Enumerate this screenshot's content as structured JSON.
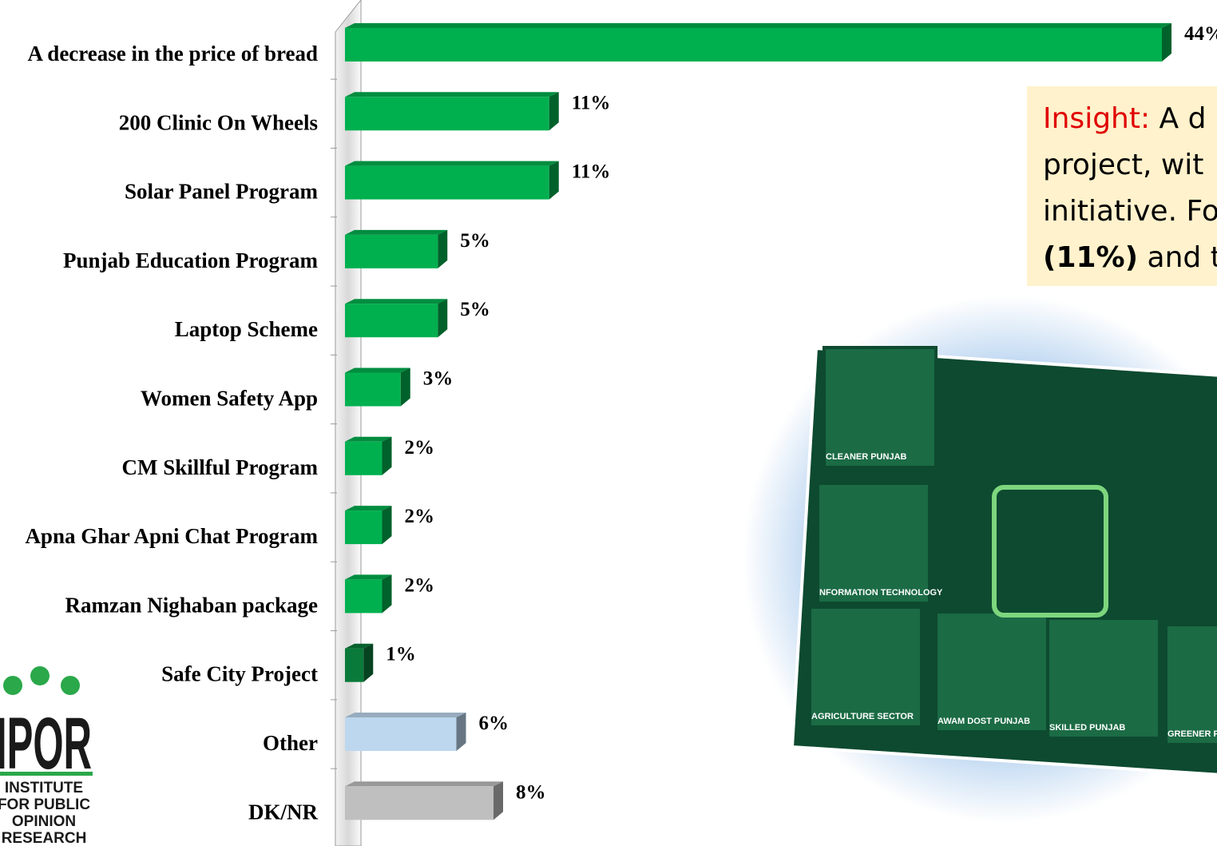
{
  "chart_data": {
    "type": "bar",
    "categories": [
      "A decrease in the price of bread",
      "200 Clinic On Wheels",
      "Solar Panel Program",
      "Punjab Education Program",
      "Laptop Scheme",
      "Women Safety App",
      "CM Skillful Program",
      "Apna Ghar Apni Chat Program",
      "Ramzan Nighaban package",
      "Safe City Project",
      "Other",
      "DK/NR"
    ],
    "values": [
      44,
      11,
      11,
      5,
      5,
      3,
      2,
      2,
      2,
      1,
      6,
      8
    ],
    "value_labels": [
      "44%",
      "11%",
      "11%",
      "5%",
      "5%",
      "3%",
      "2%",
      "2%",
      "2%",
      "1%",
      "6%",
      "8%"
    ],
    "colors": [
      "#00b04f",
      "#00b04f",
      "#00b04f",
      "#00b04f",
      "#00b04f",
      "#00b04f",
      "#00b04f",
      "#00b04f",
      "#00b04f",
      "#0a7a3a",
      "#bdd7ee",
      "#bfbfbf"
    ]
  },
  "insight": {
    "label": "Insight:",
    "lines": [
      " A d",
      "project, wit",
      "initiative. Fo",
      "(11%)",
      " and t"
    ]
  },
  "logo": {
    "mark": "IPOR",
    "lines": [
      "INSTITUTE",
      "FOR PUBLIC",
      "OPINION",
      "RESEARCH"
    ]
  },
  "image": {
    "panels": [
      "CLEANER PUNJAB",
      "NFORMATION TECHNOLOGY",
      "AGRICULTURE SECTOR",
      "AWAM DOST PUNJAB",
      "SKILLED PUNJAB",
      "GREENER P"
    ]
  }
}
